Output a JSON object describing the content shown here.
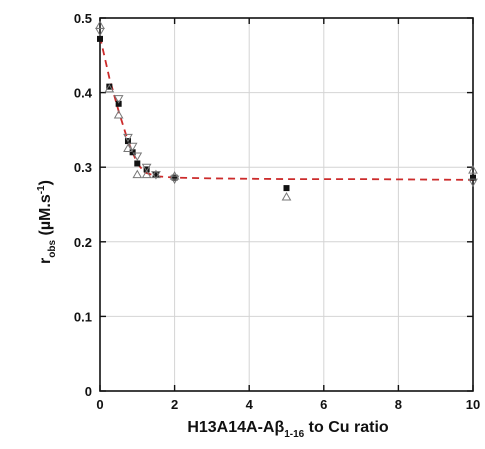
{
  "chart_data": {
    "type": "scatter",
    "xlim": [
      0,
      10
    ],
    "ylim": [
      0,
      0.5
    ],
    "x_ticks": [
      0,
      2,
      4,
      6,
      8,
      10
    ],
    "y_ticks": [
      0,
      0.1,
      0.2,
      0.3,
      0.4,
      0.5
    ],
    "x_tick_labels": [
      "0",
      "2",
      "4",
      "6",
      "8",
      "10"
    ],
    "y_tick_labels": [
      "0",
      "0.1",
      "0.2",
      "0.3",
      "0.4",
      "0.5"
    ],
    "grid": true,
    "xlabel": {
      "main": "H13A14A-Aβ",
      "sub": "1-16",
      "tail": " to Cu ratio"
    },
    "ylabel": {
      "main": "r",
      "sub": "obs",
      "tail": " (µM.s",
      "sup": "-1",
      "close": ")"
    },
    "series": [
      {
        "marker": "filled-square",
        "color": "#111111",
        "x": [
          0,
          0.25,
          0.5,
          0.75,
          0.875,
          1.0,
          1.25,
          1.5,
          2.0,
          5.0,
          10.0
        ],
        "y": [
          0.472,
          0.408,
          0.385,
          0.335,
          0.32,
          0.305,
          0.297,
          0.29,
          0.286,
          0.272,
          0.286
        ]
      },
      {
        "marker": "open-triangle",
        "color": "#777777",
        "x": [
          0,
          0.25,
          0.5,
          0.75,
          1.0,
          1.25,
          1.5,
          2.0,
          5.0,
          10.0
        ],
        "y": [
          0.49,
          0.405,
          0.37,
          0.325,
          0.29,
          0.29,
          0.29,
          0.288,
          0.26,
          0.296
        ]
      },
      {
        "marker": "open-down-triangle",
        "color": "#777777",
        "x": [
          0,
          0.5,
          0.75,
          0.875,
          1.0,
          1.25,
          1.5,
          2.0,
          10.0
        ],
        "y": [
          0.482,
          0.392,
          0.34,
          0.328,
          0.315,
          0.3,
          0.29,
          0.284,
          0.28
        ]
      }
    ],
    "fit_line": {
      "style": "dashed",
      "color": "#cc2b2b",
      "x": [
        0,
        0.25,
        0.5,
        0.75,
        1.0,
        1.2,
        1.5,
        2.0,
        3.0,
        5.0,
        7.0,
        10.0
      ],
      "y": [
        0.475,
        0.42,
        0.375,
        0.335,
        0.305,
        0.293,
        0.288,
        0.286,
        0.285,
        0.284,
        0.284,
        0.283
      ]
    }
  }
}
